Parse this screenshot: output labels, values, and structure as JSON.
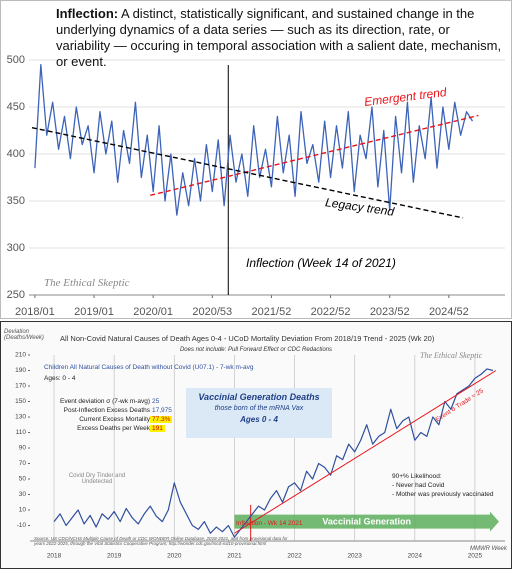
{
  "chart_data": [
    {
      "type": "line",
      "title_lead": "Inflection:",
      "title": "A distinct, statistically significant, and sustained change in the underlying dynamics of a data series — such as its direction, rate, or variability — occuring in temporal association with a salient date, mechanism, or event.",
      "watermark": "The Ethical Skeptic",
      "x": [
        2018,
        2018.1,
        2018.2,
        2018.3,
        2018.4,
        2018.5,
        2018.6,
        2018.7,
        2018.8,
        2018.9,
        2019,
        2019.1,
        2019.2,
        2019.3,
        2019.4,
        2019.5,
        2019.6,
        2019.7,
        2019.8,
        2019.9,
        2020,
        2020.1,
        2020.2,
        2020.3,
        2020.4,
        2020.5,
        2020.6,
        2020.7,
        2020.8,
        2020.9,
        2021,
        2021.1,
        2021.2,
        2021.3,
        2021.4,
        2021.5,
        2021.6,
        2021.7,
        2021.8,
        2021.9,
        2022,
        2022.1,
        2022.2,
        2022.3,
        2022.4,
        2022.5,
        2022.6,
        2022.7,
        2022.8,
        2022.9,
        2023,
        2023.1,
        2023.2,
        2023.3,
        2023.4,
        2023.5,
        2023.6,
        2023.7,
        2023.8,
        2023.9,
        2024,
        2024.1,
        2024.2,
        2024.3,
        2024.4,
        2024.5,
        2024.6,
        2024.7,
        2024.8,
        2024.9,
        2025,
        2025.1,
        2025.2,
        2025.3,
        2025.4
      ],
      "values": [
        385,
        495,
        420,
        455,
        405,
        440,
        395,
        450,
        410,
        430,
        380,
        445,
        400,
        435,
        370,
        425,
        390,
        455,
        375,
        420,
        360,
        430,
        350,
        400,
        335,
        380,
        345,
        395,
        350,
        410,
        360,
        415,
        345,
        420,
        370,
        400,
        355,
        430,
        375,
        405,
        365,
        440,
        380,
        420,
        355,
        445,
        390,
        410,
        370,
        435,
        375,
        430,
        385,
        445,
        360,
        420,
        395,
        450,
        365,
        425,
        340,
        440,
        380,
        455,
        370,
        430,
        395,
        460,
        385,
        450,
        405,
        455,
        420,
        445,
        435
      ],
      "color": "#3d63b8",
      "xlim": [
        2017.9,
        2025.95
      ],
      "xticks": [
        {
          "value": 2018,
          "label": "2018/01"
        },
        {
          "value": 2019,
          "label": "2019/01"
        },
        {
          "value": 2020,
          "label": "2020/01"
        },
        {
          "value": 2021,
          "label": "2020/53"
        },
        {
          "value": 2022,
          "label": "2021/52"
        },
        {
          "value": 2023,
          "label": "2022/52"
        },
        {
          "value": 2024,
          "label": "2023/52"
        },
        {
          "value": 2025,
          "label": "2024/52"
        }
      ],
      "ylim": [
        250,
        500
      ],
      "yticks": [
        250,
        300,
        350,
        400,
        450,
        500
      ],
      "grid": "y",
      "trend_lines": [
        {
          "name": "Emergent trend",
          "color": "#e8141c",
          "x": [
            2019.95,
            2025.5
          ],
          "values": [
            356,
            441
          ]
        },
        {
          "name": "Legacy trend",
          "color": "#000000",
          "x": [
            2017.95,
            2025.24
          ],
          "values": [
            428,
            332
          ]
        }
      ],
      "marker_line": {
        "x": 2021.27,
        "label": "Inflection (Week 14 of 2021)"
      }
    },
    {
      "type": "line",
      "title": "All Non-Covid Natural Causes of Death Ages 0-4 - UCoD Mortality Deviation From 2018/19 Trend - 2025 (Wk 20)",
      "subtitle": "Does not include: Pull Forward Effect or CDC Redactions",
      "y_label": "Deviation (Deaths/Week)",
      "x_label": "MMWR Week",
      "watermark": "The Ethical Skeptic",
      "x": [
        2018,
        2018.1,
        2018.2,
        2018.3,
        2018.4,
        2018.5,
        2018.6,
        2018.7,
        2018.8,
        2018.9,
        2019,
        2019.1,
        2019.2,
        2019.3,
        2019.4,
        2019.5,
        2019.6,
        2019.7,
        2019.8,
        2019.9,
        2020,
        2020.1,
        2020.2,
        2020.3,
        2020.4,
        2020.5,
        2020.6,
        2020.7,
        2020.8,
        2020.9,
        2021,
        2021.1,
        2021.2,
        2021.3,
        2021.4,
        2021.5,
        2021.6,
        2021.7,
        2021.8,
        2021.9,
        2022,
        2022.1,
        2022.2,
        2022.3,
        2022.4,
        2022.5,
        2022.6,
        2022.7,
        2022.8,
        2022.9,
        2023,
        2023.1,
        2023.2,
        2023.3,
        2023.4,
        2023.5,
        2023.6,
        2023.7,
        2023.8,
        2023.9,
        2024,
        2024.1,
        2024.2,
        2024.3,
        2024.4,
        2024.5,
        2024.6,
        2024.7,
        2024.8,
        2024.9,
        2025,
        2025.1,
        2025.2,
        2025.3
      ],
      "series": [
        {
          "name": "Children All Natural Causes of Death without Covid (U07.1) - 7-wk m-avg",
          "color": "#2e4f9e",
          "values": [
            -5,
            5,
            -10,
            0,
            10,
            -8,
            3,
            -12,
            5,
            -2,
            8,
            -5,
            12,
            0,
            -8,
            5,
            15,
            2,
            -5,
            10,
            45,
            20,
            5,
            -10,
            -15,
            -5,
            -20,
            -12,
            -18,
            -10,
            -25,
            -15,
            -5,
            5,
            15,
            10,
            25,
            35,
            20,
            40,
            45,
            35,
            60,
            50,
            70,
            65,
            55,
            80,
            75,
            95,
            85,
            100,
            120,
            95,
            105,
            110,
            140,
            115,
            125,
            130,
            100,
            110,
            105,
            130,
            120,
            150,
            140,
            160,
            165,
            170,
            180,
            185,
            192,
            190
          ]
        }
      ],
      "subgroup": "Ages: 0 - 4",
      "stats": [
        {
          "label": "Event deviation σ (7-wk m-avg)",
          "value": "25"
        },
        {
          "label": "Post-Inflection Excess Deaths",
          "value": "17,975"
        },
        {
          "label": "Current Excess Mortality",
          "value": "77.3%"
        },
        {
          "label": "Excess Deaths per Week",
          "value": "191"
        }
      ],
      "callout": [
        "Vaccinial Generation Deaths",
        "those born of the mRNA Vax",
        "Ages 0 - 4"
      ],
      "tinder_note": "Covid Dry Tinder and Undetected",
      "notes": [
        "90+% Likelihood:",
        "- Never had Covid",
        "- Mother was previously vaccinated"
      ],
      "xlim": [
        2017.6,
        2025.5
      ],
      "xticks": [
        2018,
        2019,
        2020,
        2021,
        2022,
        2023,
        2024,
        2025
      ],
      "ylim": [
        -30,
        210
      ],
      "yticks": [
        -10,
        10,
        30,
        50,
        70,
        90,
        110,
        130,
        150,
        170,
        190,
        210
      ],
      "grid": "x",
      "trend_lines": [
        {
          "name": "Event σ Trade ≈ 25",
          "color": "#e8141c",
          "x": [
            2021.0,
            2025.35
          ],
          "values": [
            -20,
            190
          ]
        }
      ],
      "marker_line": {
        "x": 2021.27,
        "label": "Inflection - Wk 14 2021"
      },
      "arrow": {
        "label": "Vaccinial Generation",
        "x": [
          2021.0,
          2025.4
        ],
        "y": -5,
        "color": "#5cae5c"
      },
      "source": "Source: US CDC/NCHS Multiple Cause of Death or CDC WONDER Online Database, 2018-2021, and from provisional data for years 2022-2025, through the Vital Statistics Cooperative Program; http://wonder.cdc.gov/mcd-icd10-provisional.html"
    }
  ]
}
